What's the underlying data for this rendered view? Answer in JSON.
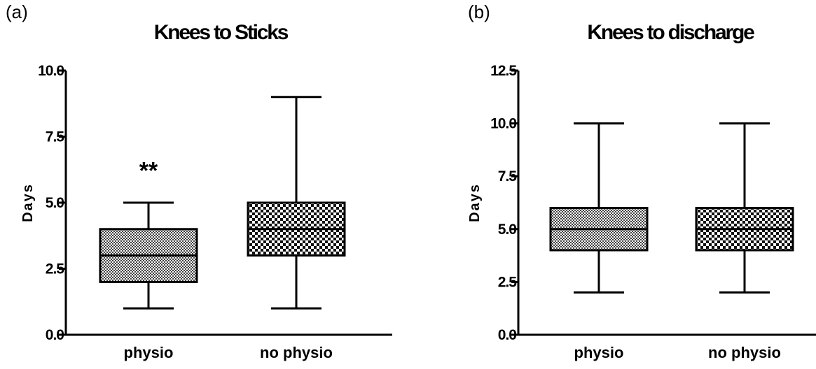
{
  "chart_data": [
    {
      "panel": "(a)",
      "type": "box",
      "title": "Knees to Sticks",
      "xlabel": "",
      "ylabel": "Days",
      "ylim": [
        0,
        10
      ],
      "yticks": [
        "0.0",
        "2.5",
        "5.0",
        "7.5",
        "10.0"
      ],
      "categories": [
        "physio",
        "no physio"
      ],
      "boxes": [
        {
          "category": "physio",
          "min": 1,
          "q1": 2,
          "median": 3,
          "q3": 4,
          "max": 5,
          "pattern": "fine"
        },
        {
          "category": "no physio",
          "min": 1,
          "q1": 3,
          "median": 4,
          "q3": 5,
          "max": 9,
          "pattern": "checker"
        }
      ],
      "annotations": [
        {
          "category": "physio",
          "text": "**",
          "y": 6.5
        }
      ],
      "grid": false
    },
    {
      "panel": "(b)",
      "type": "box",
      "title": "Knees to discharge",
      "xlabel": "",
      "ylabel": "Days",
      "ylim": [
        0,
        12.5
      ],
      "yticks": [
        "0.0",
        "2.5",
        "5.0",
        "7.5",
        "10.0",
        "12.5"
      ],
      "categories": [
        "physio",
        "no physio"
      ],
      "boxes": [
        {
          "category": "physio",
          "min": 2,
          "q1": 4,
          "median": 5,
          "q3": 6,
          "max": 10,
          "pattern": "fine"
        },
        {
          "category": "no physio",
          "min": 2,
          "q1": 4,
          "median": 5,
          "q3": 6,
          "max": 10,
          "pattern": "checker"
        }
      ],
      "annotations": [],
      "grid": false
    }
  ]
}
